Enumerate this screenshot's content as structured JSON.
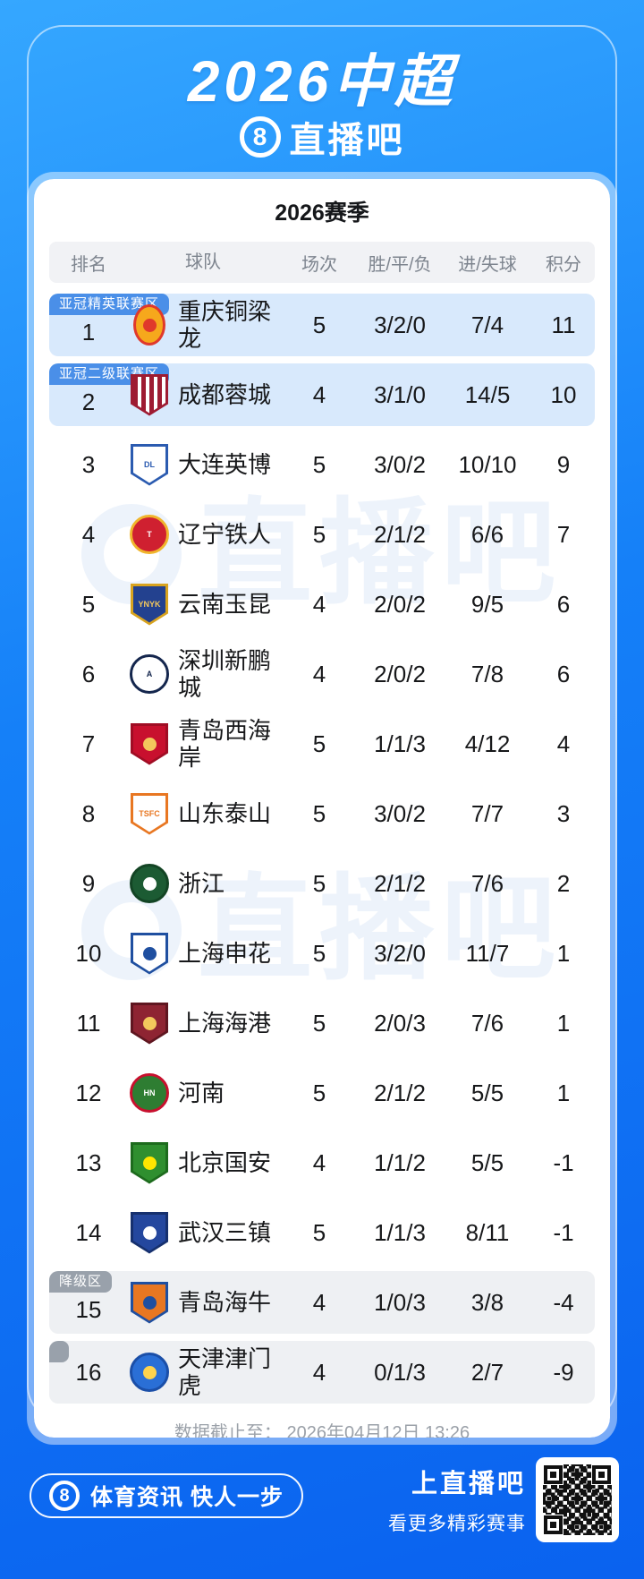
{
  "header": {
    "title": "2026中超",
    "brand_number": "8",
    "brand_name": "直播吧"
  },
  "card": {
    "season_title": "2026赛季",
    "columns": {
      "rank": "排名",
      "team": "球队",
      "matches": "场次",
      "wdl": "胜/平/负",
      "goals": "进/失球",
      "points": "积分"
    },
    "rows": [
      {
        "rank": "1",
        "badge": "亚冠精英联赛区",
        "zone": "acl",
        "team": "重庆铜梁龙",
        "matches": "5",
        "wdl": "3/2/0",
        "goals": "7/4",
        "points": "11",
        "logo": {
          "shape": "oval",
          "bg": "#f6a81c",
          "bd": "#e0392b",
          "dot": "#e0392b"
        }
      },
      {
        "rank": "2",
        "badge": "亚冠二级联赛区",
        "zone": "acl",
        "team": "成都蓉城",
        "matches": "4",
        "wdl": "3/1/0",
        "goals": "14/5",
        "points": "10",
        "logo": {
          "shape": "shield",
          "bg": "#ffffff",
          "bd": "#9e1b32",
          "stripes": true
        }
      },
      {
        "rank": "3",
        "badge": "",
        "zone": "",
        "team": "大连英博",
        "matches": "5",
        "wdl": "3/0/2",
        "goals": "10/10",
        "points": "9",
        "logo": {
          "shape": "shield",
          "bg": "#ffffff",
          "bd": "#2b5bb0",
          "fg": "#2b5bb0",
          "tx": "DL"
        }
      },
      {
        "rank": "4",
        "badge": "",
        "zone": "",
        "team": "辽宁铁人",
        "matches": "5",
        "wdl": "2/1/2",
        "goals": "6/6",
        "points": "7",
        "logo": {
          "shape": "circle",
          "bg": "#cf2030",
          "bd": "#f0b52c",
          "fg": "#ffffff",
          "tx": "T"
        }
      },
      {
        "rank": "5",
        "badge": "",
        "zone": "",
        "team": "云南玉昆",
        "matches": "4",
        "wdl": "2/0/2",
        "goals": "9/5",
        "points": "6",
        "logo": {
          "shape": "shield",
          "bg": "#23418f",
          "bd": "#d8a31f",
          "fg": "#f3c85c",
          "tx": "YNYK"
        }
      },
      {
        "rank": "6",
        "badge": "",
        "zone": "",
        "team": "深圳新鹏城",
        "matches": "4",
        "wdl": "2/0/2",
        "goals": "7/8",
        "points": "6",
        "logo": {
          "shape": "circle",
          "bg": "#ffffff",
          "bd": "#14264d",
          "fg": "#14264d",
          "tx": "A"
        }
      },
      {
        "rank": "7",
        "badge": "",
        "zone": "",
        "team": "青岛西海岸",
        "matches": "5",
        "wdl": "1/1/3",
        "goals": "4/12",
        "points": "4",
        "logo": {
          "shape": "shield",
          "bg": "#c8102e",
          "bd": "#a00d24",
          "dot": "#f3c85c"
        }
      },
      {
        "rank": "8",
        "badge": "",
        "zone": "",
        "team": "山东泰山",
        "matches": "5",
        "wdl": "3/0/2",
        "goals": "7/7",
        "points": "3",
        "logo": {
          "shape": "shield",
          "bg": "#ffffff",
          "bd": "#e87722",
          "fg": "#e87722",
          "tx": "TSFC"
        }
      },
      {
        "rank": "9",
        "badge": "",
        "zone": "",
        "team": "浙江",
        "matches": "5",
        "wdl": "2/1/2",
        "goals": "7/6",
        "points": "2",
        "logo": {
          "shape": "circle",
          "bg": "#1c5b33",
          "bd": "#134424",
          "dot": "#ffffff"
        }
      },
      {
        "rank": "10",
        "badge": "",
        "zone": "",
        "team": "上海申花",
        "matches": "5",
        "wdl": "3/2/0",
        "goals": "11/7",
        "points": "1",
        "logo": {
          "shape": "shield",
          "bg": "#ffffff",
          "bd": "#1f4fa0",
          "dot": "#1f4fa0"
        }
      },
      {
        "rank": "11",
        "badge": "",
        "zone": "",
        "team": "上海海港",
        "matches": "5",
        "wdl": "2/0/3",
        "goals": "7/6",
        "points": "1",
        "logo": {
          "shape": "shield",
          "bg": "#8e2432",
          "bd": "#5f1620",
          "dot": "#f3c85c"
        }
      },
      {
        "rank": "12",
        "badge": "",
        "zone": "",
        "team": "河南",
        "matches": "5",
        "wdl": "2/1/2",
        "goals": "5/5",
        "points": "1",
        "logo": {
          "shape": "circle",
          "bg": "#2e7d32",
          "bd": "#c8102e",
          "fg": "#ffffff",
          "tx": "HN"
        }
      },
      {
        "rank": "13",
        "badge": "",
        "zone": "",
        "team": "北京国安",
        "matches": "4",
        "wdl": "1/1/2",
        "goals": "5/5",
        "points": "-1",
        "logo": {
          "shape": "shield",
          "bg": "#2f8f2f",
          "bd": "#1d6b1d",
          "dot": "#ffe600"
        }
      },
      {
        "rank": "14",
        "badge": "",
        "zone": "",
        "team": "武汉三镇",
        "matches": "5",
        "wdl": "1/1/3",
        "goals": "8/11",
        "points": "-1",
        "logo": {
          "shape": "shield",
          "bg": "#24479e",
          "bd": "#16306e",
          "dot": "#ffffff"
        }
      },
      {
        "rank": "15",
        "badge": "降级区",
        "zone": "rel",
        "team": "青岛海牛",
        "matches": "4",
        "wdl": "1/0/3",
        "goals": "3/8",
        "points": "-4",
        "logo": {
          "shape": "shield",
          "bg": "#e87722",
          "bd": "#1f4fa0",
          "dot": "#1f4fa0"
        }
      },
      {
        "rank": "16",
        "badge": "",
        "zone": "rel",
        "team": "天津津门虎",
        "matches": "4",
        "wdl": "0/1/3",
        "goals": "2/7",
        "points": "-9",
        "logo": {
          "shape": "circle",
          "bg": "#2a6fd6",
          "bd": "#1b4fa8",
          "dot": "#ffd34d"
        }
      }
    ],
    "footnote": "数据截止至： 2026年04月12日 13:26"
  },
  "watermark": {
    "text": "直播吧"
  },
  "footer": {
    "brand_number": "8",
    "slogan": "体育资讯 快人一步",
    "cta_title": "上直播吧",
    "cta_subtitle": "看更多精彩赛事"
  },
  "colors": {
    "badge_acl": "#4a8fe8",
    "badge_relegation": "#99a1ab",
    "row_acl_bg": "#d8e9fc",
    "row_relegation_bg": "#eef0f3",
    "accent_blue": "#1479f7"
  }
}
